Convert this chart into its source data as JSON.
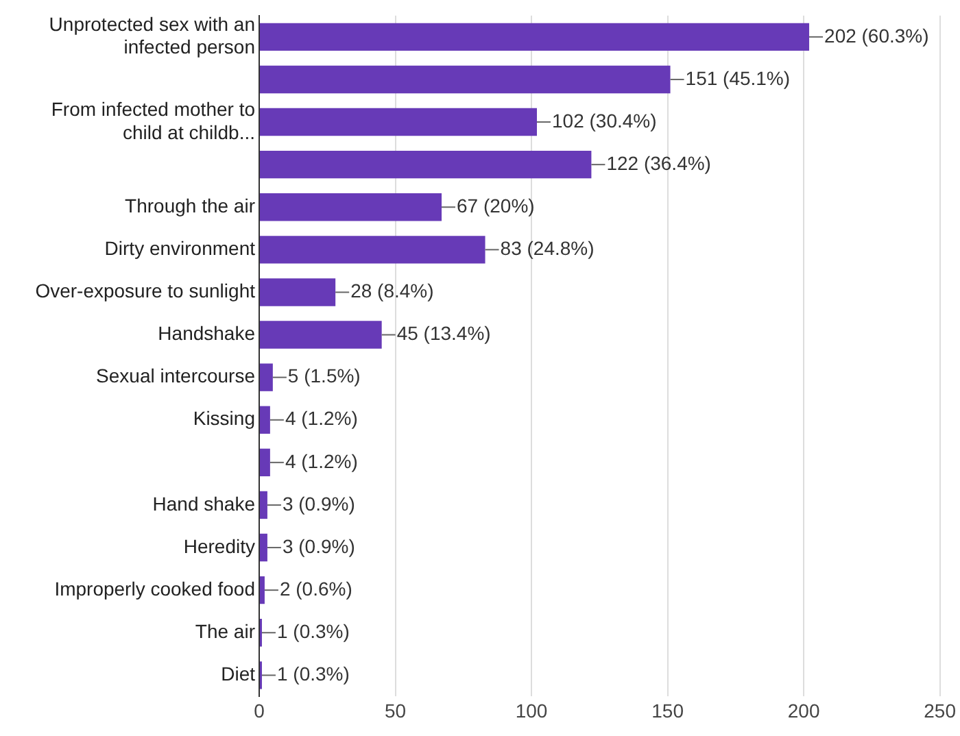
{
  "chart_data": {
    "type": "bar",
    "orientation": "horizontal",
    "categories": [
      "Unprotected sex with an infected person",
      null,
      "From infected mother to child at childb...",
      null,
      "Through the air",
      "Dirty environment",
      "Over-exposure to sunlight",
      "Handshake",
      "Sexual intercourse",
      "Kissing",
      null,
      "Hand shake",
      "Heredity",
      "Improperly cooked food",
      "The air",
      "Diet"
    ],
    "values": [
      202,
      151,
      102,
      122,
      67,
      83,
      28,
      45,
      5,
      4,
      4,
      3,
      3,
      2,
      1,
      1
    ],
    "value_labels": [
      "202 (60.3%)",
      "151 (45.1%)",
      "102 (30.4%)",
      "122 (36.4%)",
      "67 (20%)",
      "83 (24.8%)",
      "28 (8.4%)",
      "45 (13.4%)",
      "5 (1.5%)",
      "4 (1.2%)",
      "4 (1.2%)",
      "3 (0.9%)",
      "3 (0.9%)",
      "2 (0.6%)",
      "1 (0.3%)",
      "1 (0.3%)"
    ],
    "color": "#673ab7",
    "xlim": [
      0,
      250
    ],
    "xticks": [
      0,
      50,
      100,
      150,
      200,
      250
    ],
    "grid": "x"
  }
}
